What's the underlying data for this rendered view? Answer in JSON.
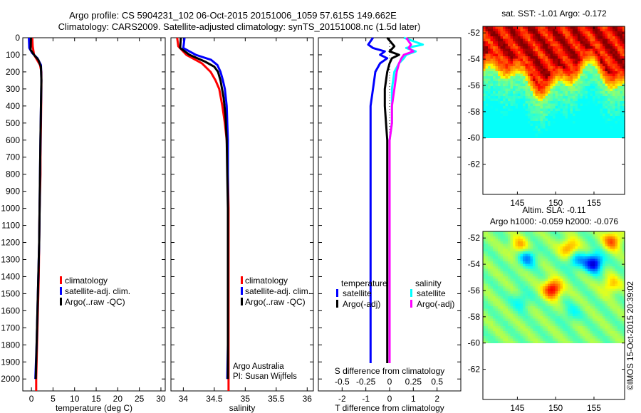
{
  "header": {
    "line1": "Argo profile: CS 5904231_102 06-Oct-2015 20151006_1059 57.615S 149.662E",
    "line2": "Climatology: CARS2009. Satellite-adjusted climatology: synTS_20151008.nc (1.5d later)"
  },
  "credit": "Argo Australia",
  "pi": "PI: Susan Wijffels",
  "stamp": "©IMOS 15-Oct-2015 20:39:02",
  "colors": {
    "climatology": "#ff0000",
    "satellite": "#0000ff",
    "argo": "#000000",
    "sat_salinity": "#00ffff",
    "argo_salinity": "#ff00ff"
  },
  "chart_data": [
    {
      "type": "line",
      "id": "temperature",
      "xlabel": "temperature (deg C)",
      "ylabel": "",
      "xlim": [
        -2,
        31
      ],
      "ylim": [
        2070,
        0
      ],
      "xticks": [
        0,
        5,
        10,
        15,
        20,
        25,
        30
      ],
      "yticks": [
        0,
        100,
        200,
        300,
        400,
        500,
        600,
        700,
        800,
        900,
        1000,
        1100,
        1200,
        1300,
        1400,
        1500,
        1600,
        1700,
        1800,
        1900,
        2000
      ],
      "legend": [
        "climatology",
        "satellite-adj. clim.",
        "Argo(..raw -QC)"
      ],
      "series": [
        {
          "name": "climatology",
          "color": "#ff0000",
          "x": [
            0.2,
            0.3,
            0.6,
            1.3,
            2.0,
            2.3,
            2.3,
            2.2,
            2.1,
            2.1,
            2.0,
            1.9,
            1.8,
            1.7,
            1.5,
            1.4,
            1.3,
            1.2,
            1.1,
            1.1
          ],
          "y": [
            0,
            50,
            100,
            130,
            160,
            200,
            300,
            500,
            700,
            800,
            900,
            1000,
            1200,
            1400,
            1600,
            1700,
            1800,
            1900,
            2000,
            2070
          ]
        },
        {
          "name": "satellite-adj. clim.",
          "color": "#0000ff",
          "x": [
            -0.6,
            -0.5,
            0.2,
            1.4,
            2.2,
            2.3,
            2.2,
            2.1,
            2.0,
            1.9,
            1.8,
            1.6,
            1.4,
            1.3,
            1.2,
            0.9
          ],
          "y": [
            0,
            60,
            90,
            120,
            160,
            250,
            400,
            600,
            800,
            1000,
            1200,
            1400,
            1600,
            1700,
            1800,
            2000
          ]
        },
        {
          "name": "Argo(..raw -QC)",
          "color": "#000000",
          "x": [
            -0.1,
            -0.2,
            0.6,
            1.6,
            2.2,
            2.3,
            2.2,
            2.1,
            2.0,
            1.9,
            1.8,
            1.6,
            1.4,
            1.3,
            1.2,
            1.0
          ],
          "y": [
            0,
            70,
            100,
            130,
            170,
            250,
            400,
            600,
            800,
            1000,
            1200,
            1400,
            1600,
            1700,
            1800,
            2000
          ]
        }
      ]
    },
    {
      "type": "line",
      "id": "salinity",
      "xlabel": "salinity",
      "ylabel": "",
      "xlim": [
        33.8,
        36.1
      ],
      "ylim": [
        2070,
        0
      ],
      "xticks": [
        34,
        34.5,
        35,
        35.5,
        36
      ],
      "legend": [
        "climatology",
        "satellite-adj. clim.",
        "Argo(..raw -QC)"
      ],
      "series": [
        {
          "name": "climatology",
          "color": "#ff0000",
          "x": [
            33.9,
            33.92,
            34.05,
            34.3,
            34.44,
            34.52,
            34.58,
            34.63,
            34.67,
            34.7,
            34.72,
            34.73,
            34.73,
            34.73,
            34.73,
            34.73
          ],
          "y": [
            0,
            50,
            100,
            150,
            200,
            250,
            300,
            400,
            500,
            600,
            800,
            1000,
            1200,
            1500,
            1800,
            2070
          ]
        },
        {
          "name": "satellite-adj. clim.",
          "color": "#0000ff",
          "x": [
            34.02,
            34.0,
            34.2,
            34.45,
            34.55,
            34.6,
            34.64,
            34.67,
            34.7,
            34.71,
            34.72,
            34.72,
            34.72,
            34.72,
            34.72,
            34.72,
            34.71
          ],
          "y": [
            0,
            60,
            100,
            130,
            160,
            200,
            250,
            300,
            400,
            500,
            600,
            800,
            1000,
            1200,
            1500,
            1800,
            2000
          ]
        },
        {
          "name": "Argo(..raw -QC)",
          "color": "#000000",
          "x": [
            33.96,
            33.95,
            34.1,
            34.35,
            34.5,
            34.56,
            34.6,
            34.65,
            34.68,
            34.7,
            34.71,
            34.72,
            34.72,
            34.72,
            34.72,
            34.72
          ],
          "y": [
            0,
            60,
            100,
            140,
            170,
            200,
            250,
            350,
            450,
            600,
            800,
            1000,
            1200,
            1500,
            1800,
            2000
          ]
        }
      ]
    },
    {
      "type": "line",
      "id": "difference",
      "xlabel": "T difference from climatology",
      "xlabel_top": "S difference from climatology",
      "xlim": [
        -3,
        3
      ],
      "ylim": [
        2070,
        0
      ],
      "xticks": [
        -2,
        -1,
        0,
        1,
        2
      ],
      "top_ticks": [
        "-0.5",
        "-0.25",
        "0",
        "0.25",
        "0.5"
      ],
      "legend_titles": [
        "temperature",
        "salinity"
      ],
      "legend": [
        "satellite",
        "Argo(-adj)",
        "satellite",
        "Argo(-adj)"
      ],
      "series": [
        {
          "name": "satellite",
          "color": "#0000ff",
          "x": [
            -0.7,
            -0.9,
            -0.7,
            -0.2,
            -0.4,
            -0.1,
            -0.4,
            -0.6,
            -0.7,
            -0.8,
            -0.8,
            -0.8,
            -0.8,
            -0.8,
            -0.8,
            -0.8,
            -0.8,
            -0.8
          ],
          "y": [
            0,
            40,
            60,
            80,
            100,
            120,
            150,
            200,
            300,
            400,
            600,
            800,
            1000,
            1200,
            1400,
            1600,
            1800,
            2000
          ]
        },
        {
          "name": "Argo(-adj)",
          "color": "#000000",
          "x": [
            -0.1,
            0.2,
            0.0,
            0.4,
            0.1,
            0.0,
            -0.1,
            -0.2,
            -0.2,
            -0.1,
            -0.1,
            -0.1,
            -0.1,
            -0.1,
            -0.1,
            -0.1,
            -0.1
          ],
          "y": [
            0,
            50,
            80,
            100,
            120,
            150,
            200,
            300,
            400,
            600,
            800,
            1000,
            1200,
            1400,
            1600,
            1800,
            2000
          ]
        },
        {
          "name": "satellite",
          "color": "#00ffff",
          "x": [
            0.6,
            1.4,
            0.7,
            1.1,
            0.7,
            0.6,
            0.4,
            0.2,
            0.1,
            0.1,
            0.1,
            0.0,
            0.0,
            0.0,
            0.0,
            0.0,
            0.0,
            0.0
          ],
          "y": [
            0,
            40,
            60,
            80,
            100,
            120,
            150,
            200,
            300,
            400,
            500,
            600,
            800,
            1000,
            1200,
            1500,
            1800,
            2000
          ]
        },
        {
          "name": "Argo(-adj)",
          "color": "#ff00ff",
          "x": [
            0.7,
            0.9,
            0.8,
            1.0,
            0.6,
            0.5,
            0.4,
            0.3,
            0.2,
            0.1,
            0.1,
            0.0,
            0.0,
            0.0,
            0.0,
            0.0,
            0.0,
            0.0
          ],
          "y": [
            0,
            40,
            60,
            80,
            100,
            120,
            150,
            200,
            300,
            400,
            500,
            600,
            800,
            1000,
            1200,
            1500,
            1800,
            2000
          ]
        }
      ]
    },
    {
      "type": "heatmap",
      "id": "sst-map",
      "title": "sat. SST: -1.01 Argo: -0.172",
      "xlim": [
        140.5,
        159
      ],
      "ylim": [
        -64.3,
        -51.5
      ],
      "xticks": [
        145,
        150,
        155
      ],
      "yticks": [
        -52,
        -54,
        -56,
        -58,
        -60,
        -62
      ],
      "data_max_lat": -60
    },
    {
      "type": "heatmap",
      "id": "sla-map",
      "title": "Altim. SLA: -0.11",
      "subtitle": "Argo h1000: -0.059 h2000: -0.076",
      "xlim": [
        140.5,
        159
      ],
      "ylim": [
        -64.3,
        -51.5
      ],
      "xticks": [
        145,
        150,
        155
      ],
      "yticks": [
        -52,
        -54,
        -56,
        -58,
        -60,
        -62
      ],
      "data_max_lat": -60,
      "anomalies": [
        {
          "lon": 155,
          "lat": -53.9,
          "value": -1.0
        },
        {
          "lon": 149.6,
          "lat": -55.9,
          "value": 1.0
        },
        {
          "lon": 146.3,
          "lat": -53.5,
          "value": -0.55
        },
        {
          "lon": 152.6,
          "lat": -53.7,
          "value": -0.5
        },
        {
          "lon": 157.4,
          "lat": -52.2,
          "value": 0.7
        },
        {
          "lon": 151.8,
          "lat": -52.8,
          "value": 0.65
        },
        {
          "lon": 145.2,
          "lat": -52.6,
          "value": 0.5
        },
        {
          "lon": 157.2,
          "lat": -55.6,
          "value": 0.45
        },
        {
          "lon": 145.5,
          "lat": -56.8,
          "value": -0.3
        },
        {
          "lon": 152.0,
          "lat": -57.8,
          "value": -0.25
        }
      ]
    }
  ]
}
